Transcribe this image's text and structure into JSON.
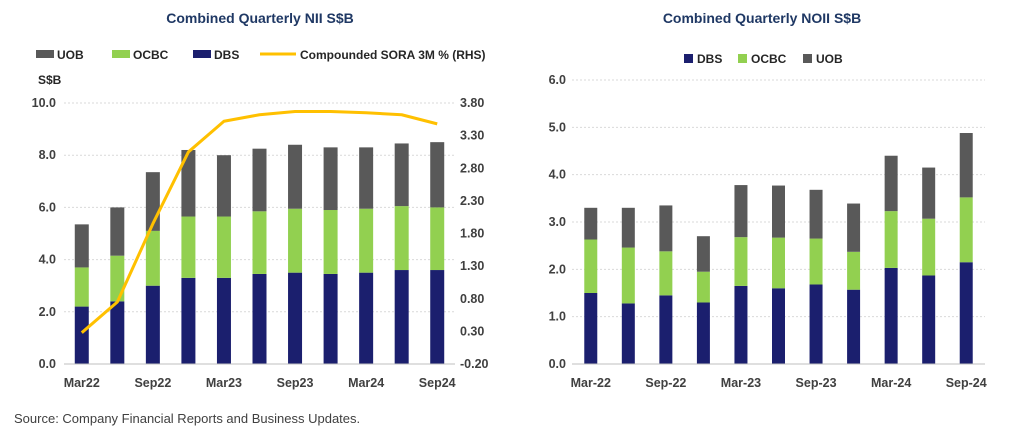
{
  "colors": {
    "DBS": "#1b1f6e",
    "OCBC": "#92d050",
    "UOB": "#595959",
    "SORA": "#ffc000"
  },
  "source": "Source: Company Financial Reports and Business Updates.",
  "chart_data": [
    {
      "type": "bar",
      "stacked": true,
      "title": "Combined Quarterly NII S$B",
      "ylabel": "S$B",
      "ylim": [
        0,
        10
      ],
      "yticks": [
        "0.0",
        "2.0",
        "4.0",
        "6.0",
        "8.0",
        "10.0"
      ],
      "y2lim": [
        -0.2,
        3.8
      ],
      "y2ticks": [
        "-0.20",
        "0.30",
        "0.80",
        "1.30",
        "1.80",
        "2.30",
        "2.80",
        "3.30",
        "3.80"
      ],
      "categories": [
        "Mar22",
        "Jun22",
        "Sep22",
        "Dec22",
        "Mar23",
        "Jun23",
        "Sep23",
        "Dec23",
        "Mar24",
        "Jun24",
        "Sep24"
      ],
      "xtick_labels": [
        "Mar22",
        "",
        "Sep22",
        "",
        "Mar23",
        "",
        "Sep23",
        "",
        "Mar24",
        "",
        "Sep24"
      ],
      "legend": [
        "UOB",
        "OCBC",
        "DBS",
        "Compounded SORA 3M % (RHS)"
      ],
      "series": [
        {
          "name": "DBS",
          "values": [
            2.2,
            2.4,
            3.0,
            3.3,
            3.3,
            3.45,
            3.5,
            3.45,
            3.5,
            3.6,
            3.6
          ]
        },
        {
          "name": "OCBC",
          "values": [
            1.5,
            1.75,
            2.1,
            2.35,
            2.35,
            2.4,
            2.45,
            2.45,
            2.45,
            2.45,
            2.4
          ]
        },
        {
          "name": "UOB",
          "values": [
            1.65,
            1.85,
            2.25,
            2.55,
            2.35,
            2.4,
            2.45,
            2.4,
            2.35,
            2.4,
            2.5
          ]
        }
      ],
      "line_series": {
        "name": "Compounded SORA 3M % (RHS)",
        "axis": "right",
        "values": [
          0.28,
          0.75,
          1.95,
          3.05,
          3.52,
          3.62,
          3.67,
          3.67,
          3.65,
          3.62,
          3.48
        ]
      }
    },
    {
      "type": "bar",
      "stacked": true,
      "title": "Combined Quarterly NOII S$B",
      "ylim": [
        0,
        6
      ],
      "yticks": [
        "0.0",
        "1.0",
        "2.0",
        "3.0",
        "4.0",
        "5.0",
        "6.0"
      ],
      "categories": [
        "Mar-22",
        "Jun-22",
        "Sep-22",
        "Dec-22",
        "Mar-23",
        "Jun-23",
        "Sep-23",
        "Dec-23",
        "Mar-24",
        "Jun-24",
        "Sep-24"
      ],
      "xtick_labels": [
        "Mar-22",
        "",
        "Sep-22",
        "",
        "Mar-23",
        "",
        "Sep-23",
        "",
        "Mar-24",
        "",
        "Sep-24"
      ],
      "legend": [
        "DBS",
        "OCBC",
        "UOB"
      ],
      "series": [
        {
          "name": "DBS",
          "values": [
            1.5,
            1.28,
            1.45,
            1.3,
            1.65,
            1.6,
            1.68,
            1.57,
            2.03,
            1.87,
            2.15
          ]
        },
        {
          "name": "OCBC",
          "values": [
            1.13,
            1.18,
            0.93,
            0.65,
            1.03,
            1.07,
            0.97,
            0.8,
            1.2,
            1.2,
            1.37
          ]
        },
        {
          "name": "UOB",
          "values": [
            0.67,
            0.84,
            0.97,
            0.75,
            1.1,
            1.1,
            1.03,
            1.02,
            1.17,
            1.08,
            1.36
          ]
        }
      ]
    }
  ]
}
